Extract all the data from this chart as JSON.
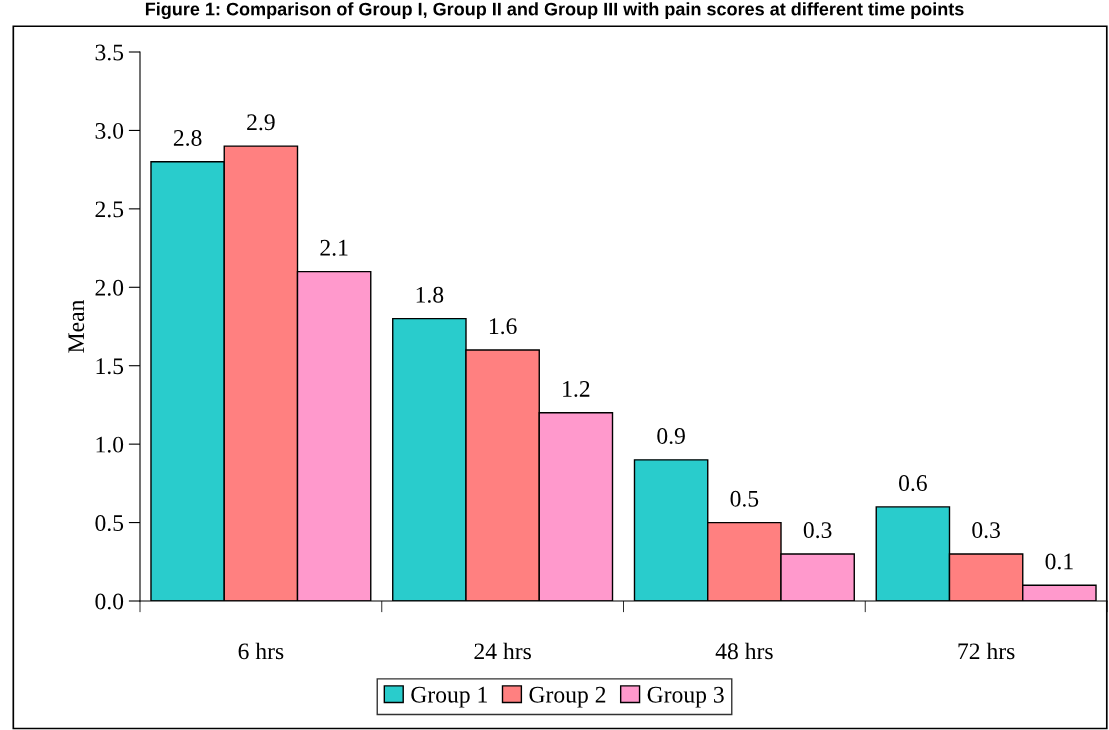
{
  "chart_data": {
    "type": "bar",
    "title": "Figure 1: Comparison of Group I, Group II and Group III with pain scores at different time points",
    "ylabel": "Mean",
    "categories": [
      "6 hrs",
      "24 hrs",
      "48 hrs",
      "72 hrs"
    ],
    "series": [
      {
        "name": "Group 1",
        "color": "#29cccc",
        "values": [
          2.8,
          1.8,
          0.9,
          0.6
        ]
      },
      {
        "name": "Group 2",
        "color": "#ff8080",
        "values": [
          2.9,
          1.6,
          0.5,
          0.3
        ]
      },
      {
        "name": "Group 3",
        "color": "#ff99cc",
        "values": [
          2.1,
          1.2,
          0.3,
          0.1
        ]
      }
    ],
    "ylim": [
      0,
      3.5
    ],
    "yticks": [
      {
        "value": 0,
        "label": "0.0"
      },
      {
        "value": 0.5,
        "label": "0.5"
      },
      {
        "value": 1,
        "label": "1.0"
      },
      {
        "value": 1.5,
        "label": "1.5"
      },
      {
        "value": 2,
        "label": "2.0"
      },
      {
        "value": 2.5,
        "label": "2.5"
      },
      {
        "value": 3,
        "label": "3.0"
      },
      {
        "value": 3.5,
        "label": "3.5"
      }
    ],
    "data_labels": true,
    "grid": false,
    "legend": "bottom"
  }
}
